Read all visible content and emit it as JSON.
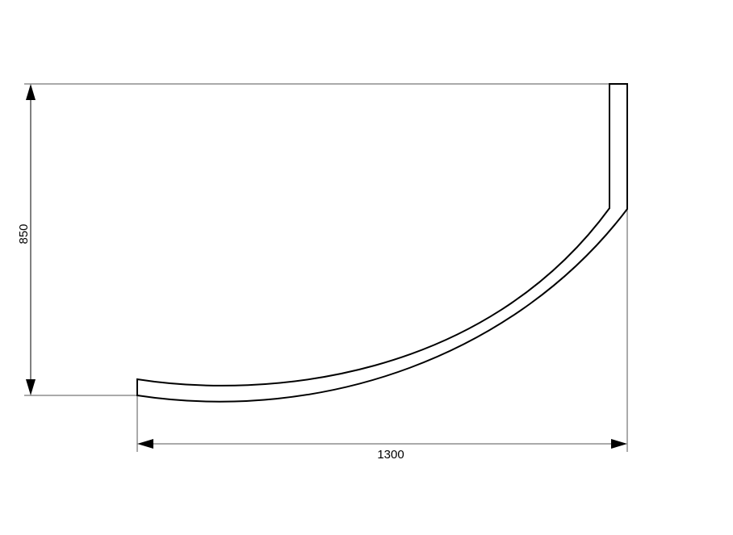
{
  "dimensions": {
    "height_label": "850",
    "width_label": "1300"
  },
  "colors": {
    "line": "#000000",
    "extension_line": "#555555"
  }
}
